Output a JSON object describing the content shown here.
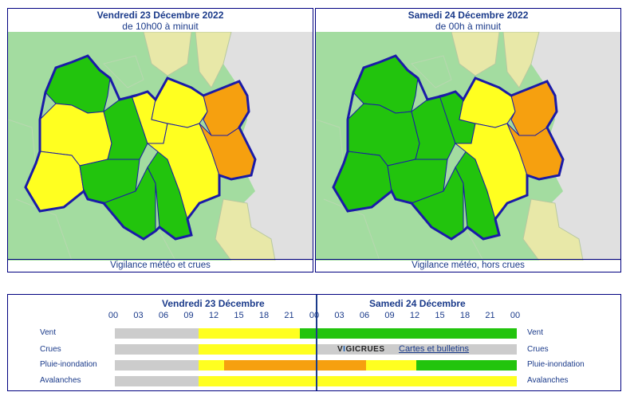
{
  "left_panel": {
    "date": "Vendredi 23 Décembre 2022",
    "period": "de 10h00 à minuit",
    "caption": "Vigilance météo et crues"
  },
  "right_panel": {
    "date": "Samedi 24 Décembre 2022",
    "period": "de 00h à minuit",
    "caption": "Vigilance météo, hors crues"
  },
  "colors": {
    "green": "#22c40d",
    "yellow": "#ffff20",
    "orange": "#f6a00f",
    "grey": "#cccccc",
    "neighbor_green": "#a3dca0",
    "neighbor_yellow": "#e8e8a8",
    "border": "#1a1aa8"
  },
  "timeline": {
    "day1": "Vendredi 23 Décembre",
    "day2": "Samedi 24 Décembre",
    "hours": [
      "00",
      "03",
      "06",
      "09",
      "12",
      "15",
      "18",
      "21",
      "00",
      "03",
      "06",
      "09",
      "12",
      "15",
      "18",
      "21",
      "00"
    ],
    "rows": [
      {
        "label": "Vent",
        "label_right": "Vent"
      },
      {
        "label": "Crues",
        "label_right": "Crues"
      },
      {
        "label": "Pluie-inondation",
        "label_right": "Pluie-inondation"
      },
      {
        "label": "Avalanches",
        "label_right": "Avalanches"
      }
    ],
    "vigicrues_prefix": "V",
    "vigicrues_mark": "I",
    "vigicrues_suffix": "GICRUES",
    "cartes_link": "Cartes et bulletins"
  }
}
